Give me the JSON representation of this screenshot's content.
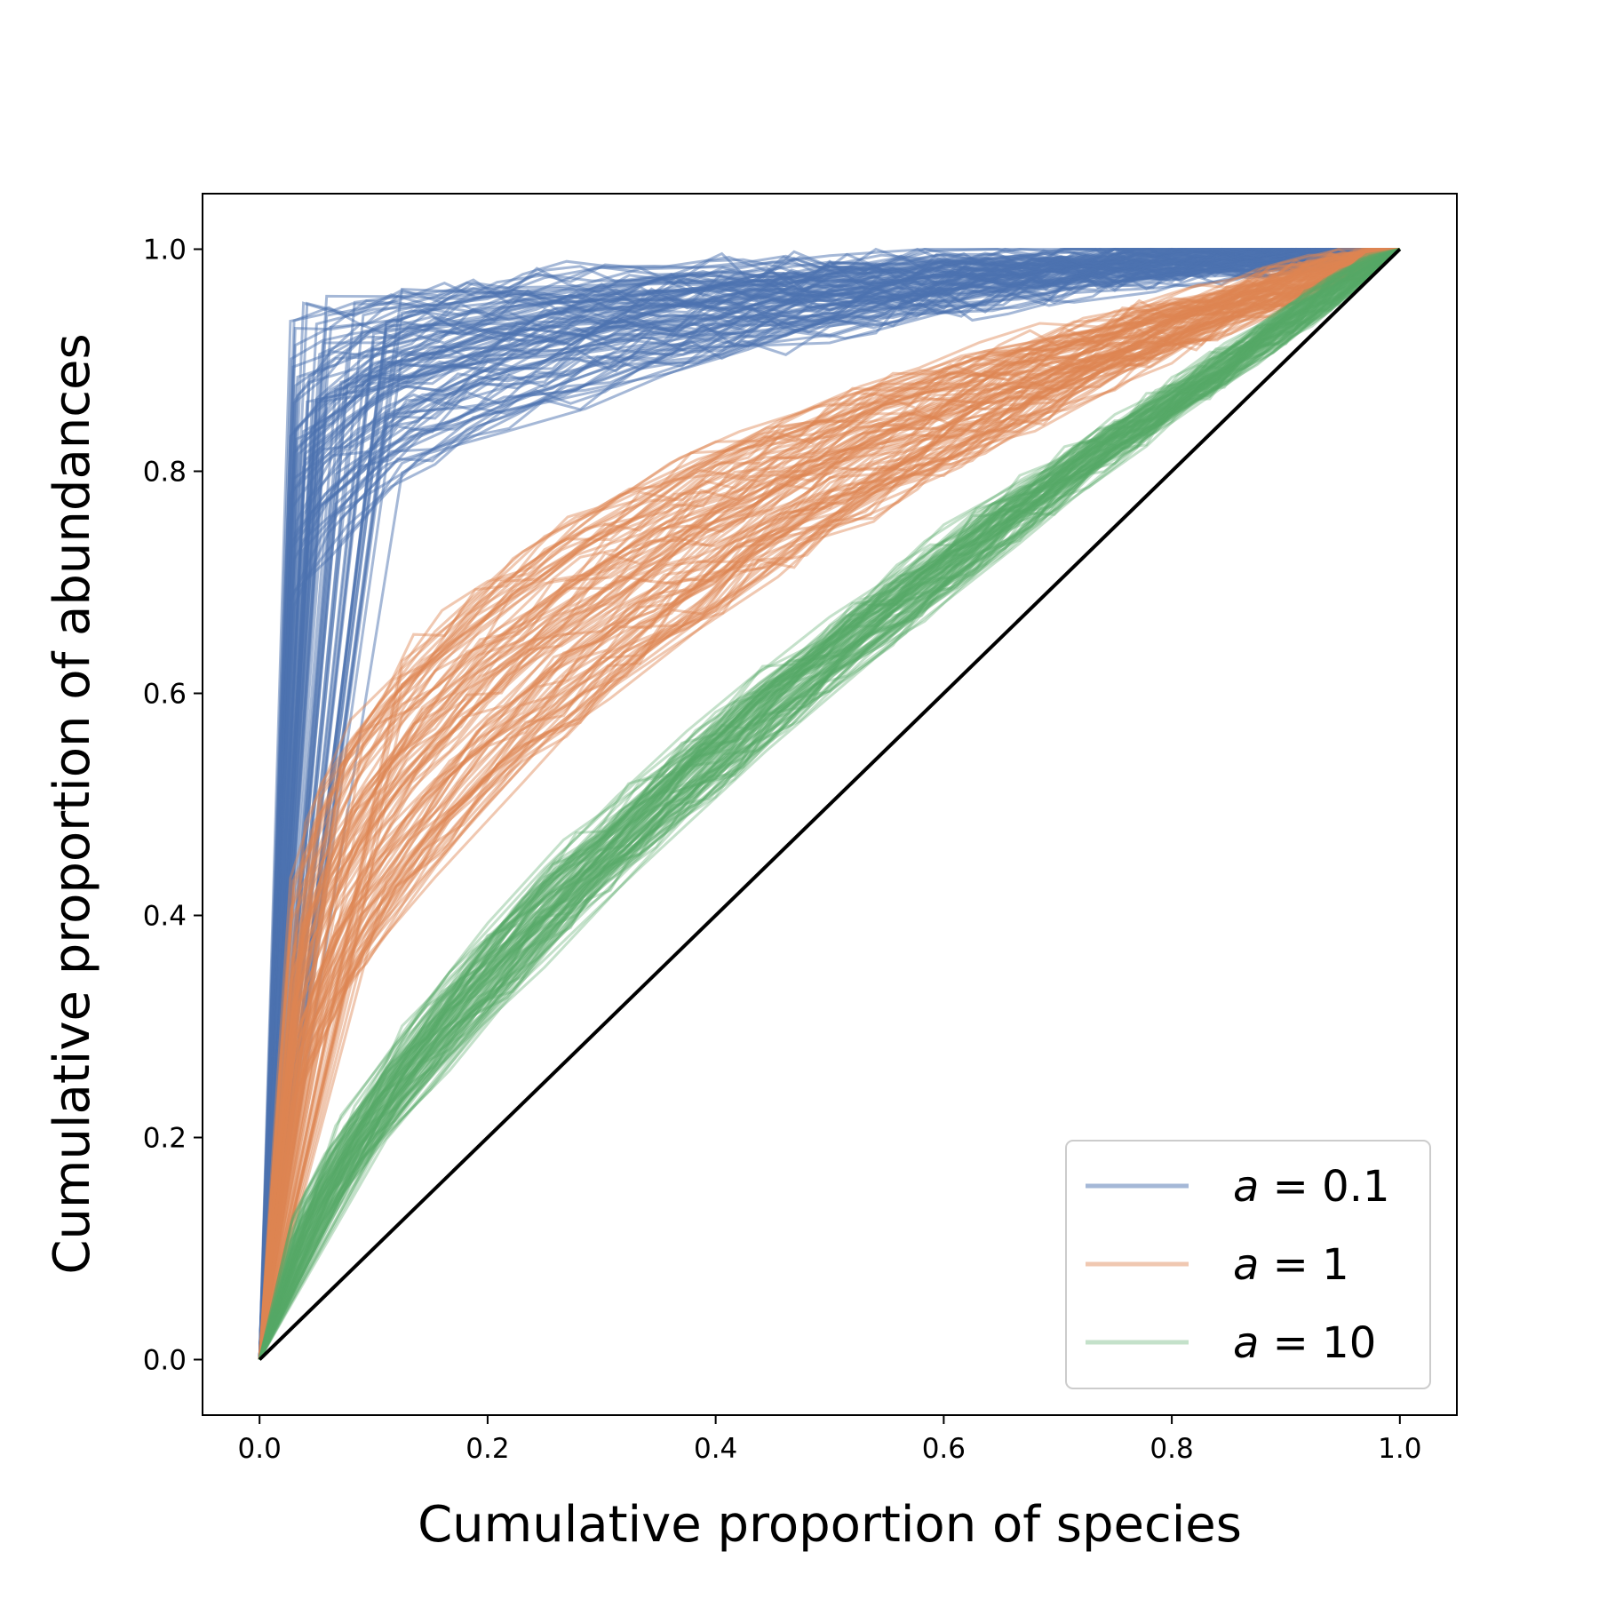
{
  "chart_data": {
    "type": "line",
    "title": "",
    "xlabel": "Cumulative proportion of species",
    "ylabel": "Cumulative proportion of abundances",
    "xlim": [
      -0.05,
      1.05
    ],
    "ylim": [
      -0.05,
      1.05
    ],
    "xticks": [
      "0.0",
      "0.2",
      "0.4",
      "0.6",
      "0.8",
      "1.0"
    ],
    "yticks": [
      "0.0",
      "0.2",
      "0.4",
      "0.6",
      "0.8",
      "1.0"
    ],
    "grid": false,
    "legend_position": "lower-right",
    "reference_line": {
      "x": [
        0,
        1
      ],
      "y": [
        0,
        1
      ],
      "color": "#000000"
    },
    "series": [
      {
        "name": "a = 0.1",
        "label_var": "a",
        "label_rest": " = 0.1",
        "color": "#4c72b0",
        "opacity": 0.5,
        "runs": 100,
        "gini_range": [
          0.8,
          0.97
        ],
        "curve": "lorenz"
      },
      {
        "name": "a = 1",
        "label_var": "a",
        "label_rest": " = 1",
        "color": "#dd8452",
        "opacity": 0.45,
        "runs": 100,
        "gini_range": [
          0.4,
          0.64
        ],
        "curve": "lorenz"
      },
      {
        "name": "a = 10",
        "label_var": "a",
        "label_rest": " = 10",
        "color": "#55a868",
        "opacity": 0.35,
        "runs": 100,
        "gini_range": [
          0.16,
          0.26
        ],
        "curve": "lorenz"
      }
    ]
  }
}
